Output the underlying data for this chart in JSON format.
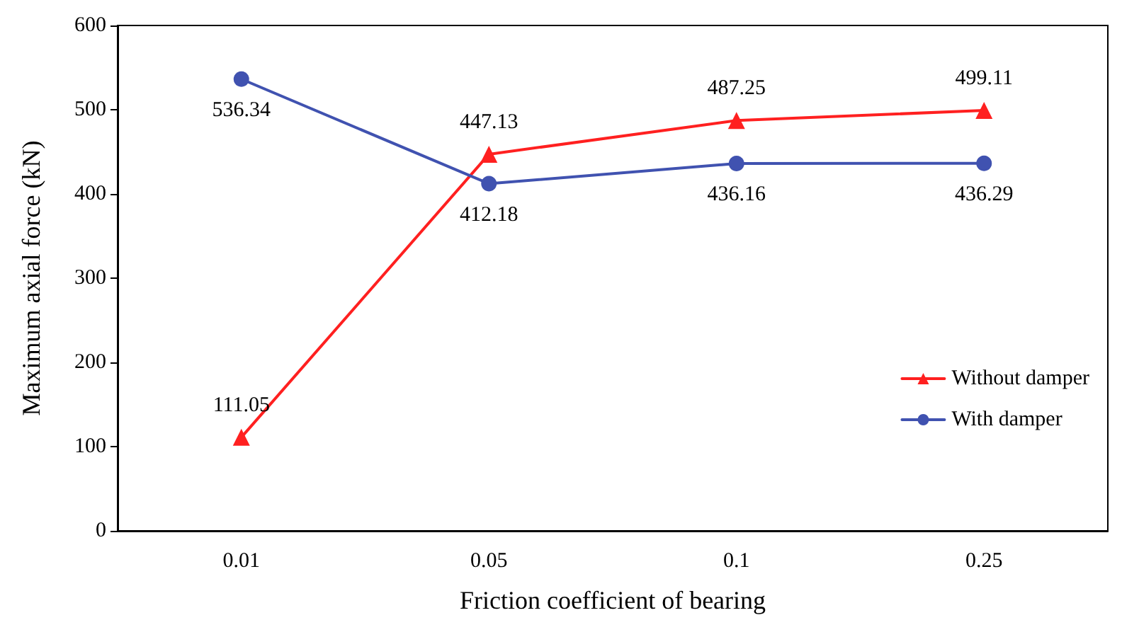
{
  "chart_data": {
    "type": "line",
    "xlabel": "Friction coefficient of bearing",
    "ylabel": "Maximum axial force (kN)",
    "categories": [
      "0.01",
      "0.05",
      "0.1",
      "0.25"
    ],
    "series": [
      {
        "name": "Without damper",
        "color": "#ff2020",
        "marker": "triangle",
        "values": [
          111.05,
          447.13,
          487.25,
          499.11
        ]
      },
      {
        "name": "With damper",
        "color": "#4052b0",
        "marker": "circle",
        "values": [
          536.34,
          412.18,
          436.16,
          436.29
        ]
      }
    ],
    "ylim": [
      0,
      600
    ],
    "yticks": [
      0,
      100,
      200,
      300,
      400,
      500,
      600
    ],
    "grid": false,
    "legend": "bottom right",
    "data_labels": true,
    "line_style": "solid"
  }
}
